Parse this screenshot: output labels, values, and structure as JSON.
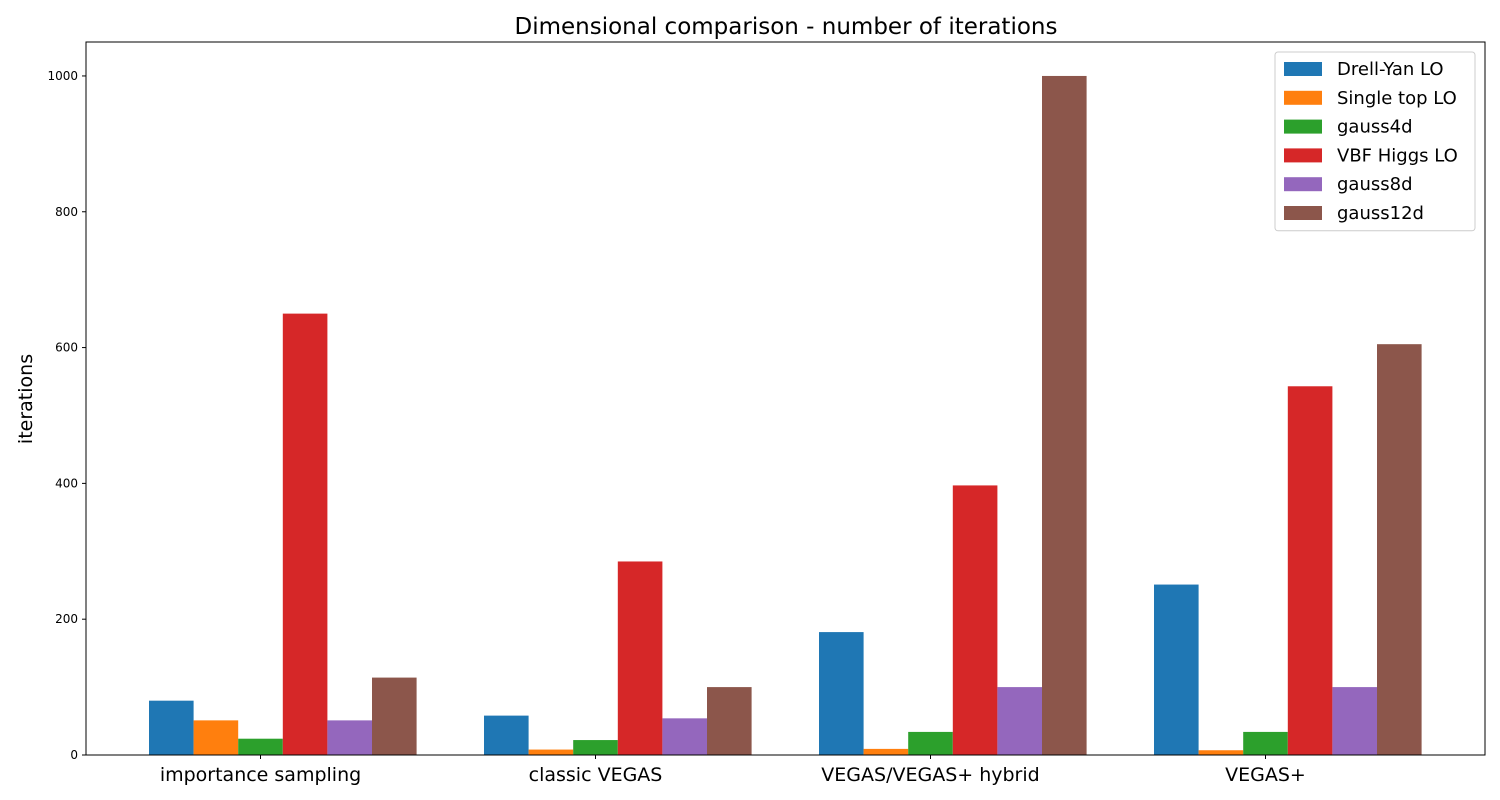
{
  "chart_data": {
    "type": "bar",
    "title": "Dimensional comparison - number of iterations",
    "xlabel": "",
    "ylabel": "iterations",
    "ylim": [
      0,
      1050
    ],
    "yticks": [
      0,
      200,
      400,
      600,
      800,
      1000
    ],
    "categories": [
      "importance sampling",
      "classic VEGAS",
      "VEGAS/VEGAS+ hybrid",
      "VEGAS+"
    ],
    "legend_position": "top-right",
    "grid": false,
    "series": [
      {
        "name": "Drell-Yan LO",
        "color": "#1f77b4",
        "values": [
          80,
          58,
          181,
          251
        ]
      },
      {
        "name": "Single top LO",
        "color": "#ff7f0e",
        "values": [
          51,
          8,
          9,
          7
        ]
      },
      {
        "name": "gauss4d",
        "color": "#2ca02c",
        "values": [
          24,
          22,
          34,
          34
        ]
      },
      {
        "name": "VBF Higgs LO",
        "color": "#d62728",
        "values": [
          650,
          285,
          397,
          543
        ]
      },
      {
        "name": "gauss8d",
        "color": "#9467bd",
        "values": [
          51,
          54,
          100,
          100
        ]
      },
      {
        "name": "gauss12d",
        "color": "#8c564b",
        "values": [
          114,
          100,
          1000,
          605
        ]
      }
    ]
  }
}
